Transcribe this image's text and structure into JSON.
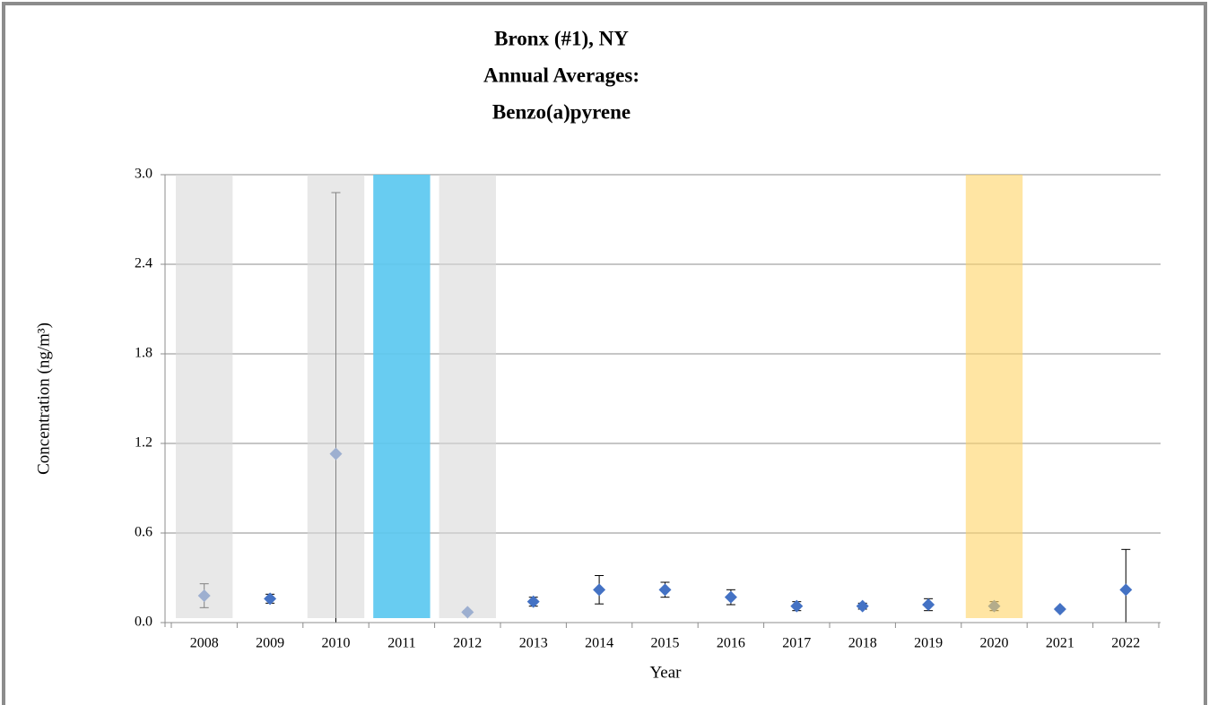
{
  "chart_data": {
    "type": "scatter",
    "title": [
      "Bronx (#1), NY",
      "Annual Averages:",
      "Benzo(a)pyrene"
    ],
    "x_label": "Year",
    "y_label": "Concentration (ng/m³)",
    "categories": [
      "2008",
      "2009",
      "2010",
      "2011",
      "2012",
      "2013",
      "2014",
      "2015",
      "2016",
      "2017",
      "2018",
      "2019",
      "2020",
      "2021",
      "2022"
    ],
    "values": [
      0.18,
      0.16,
      1.13,
      null,
      0.07,
      0.14,
      0.22,
      0.22,
      0.17,
      0.11,
      0.11,
      0.12,
      0.11,
      0.09,
      0.22
    ],
    "errors": [
      0.08,
      0.03,
      1.75,
      null,
      0.01,
      0.03,
      0.095,
      0.05,
      0.05,
      0.03,
      0.02,
      0.04,
      0.03,
      0.01,
      0.27
    ],
    "color": "#4472c4",
    "band_colors": [
      "#d9d9d9",
      null,
      "#d9d9d9",
      "#5bc8f0",
      "#d9d9d9",
      null,
      null,
      null,
      null,
      null,
      null,
      null,
      "#ffd466",
      null,
      null
    ],
    "ylim": [
      0,
      3.0
    ],
    "yticks": [
      {
        "value": 0,
        "label": "0.0"
      },
      {
        "value": 0.6,
        "label": "0.6"
      },
      {
        "value": 1.2,
        "label": "1.2"
      },
      {
        "value": 1.8,
        "label": "1.8"
      },
      {
        "value": 2.4,
        "label": "2.4"
      },
      {
        "value": 3.0,
        "label": "3.0"
      }
    ],
    "grid": true
  }
}
